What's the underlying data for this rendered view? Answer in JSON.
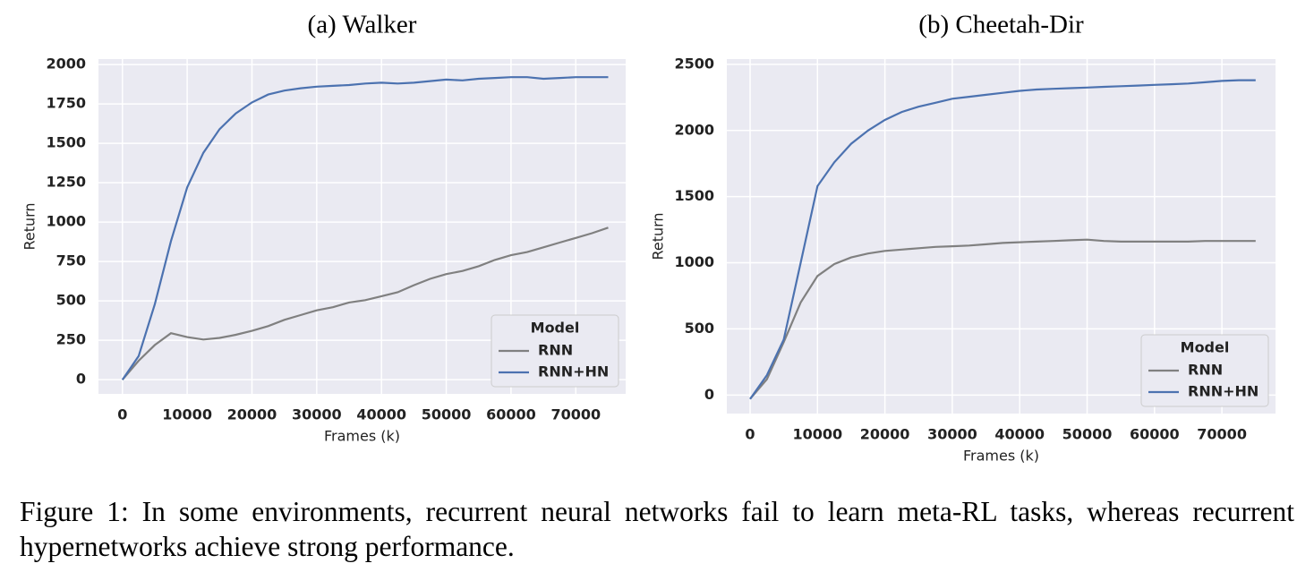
{
  "chart_data": [
    {
      "type": "line",
      "title": "(a) Walker",
      "xlabel": "Frames (k)",
      "ylabel": "Return",
      "x": [
        0,
        2500,
        5000,
        7500,
        10000,
        12500,
        15000,
        17500,
        20000,
        22500,
        25000,
        27500,
        30000,
        32500,
        35000,
        37500,
        40000,
        42500,
        45000,
        47500,
        50000,
        52500,
        55000,
        57500,
        60000,
        62500,
        65000,
        67500,
        70000,
        72500,
        75000
      ],
      "series": [
        {
          "name": "RNN",
          "color": "#808080",
          "values": [
            0,
            120,
            220,
            295,
            270,
            255,
            265,
            285,
            310,
            340,
            380,
            410,
            440,
            460,
            490,
            505,
            530,
            555,
            600,
            640,
            670,
            690,
            720,
            760,
            790,
            810,
            840,
            870,
            900,
            930,
            965
          ]
        },
        {
          "name": "RNN+HN",
          "color": "#4c72b0",
          "values": [
            0,
            150,
            480,
            880,
            1220,
            1440,
            1590,
            1690,
            1760,
            1810,
            1835,
            1850,
            1860,
            1865,
            1870,
            1880,
            1885,
            1880,
            1885,
            1895,
            1905,
            1900,
            1910,
            1915,
            1920,
            1920,
            1910,
            1915,
            1920,
            1920,
            1920
          ]
        }
      ],
      "xlim": [
        -3700,
        77700
      ],
      "xticks": [
        0,
        10000,
        20000,
        30000,
        40000,
        50000,
        60000,
        70000
      ],
      "ylim": [
        -90,
        2035
      ],
      "yticks": [
        0,
        250,
        500,
        750,
        1000,
        1250,
        1500,
        1750,
        2000
      ],
      "grid": true,
      "legend_title": "Model",
      "legend": "lower right"
    },
    {
      "type": "line",
      "title": "(b) Cheetah-Dir",
      "xlabel": "Frames (k)",
      "ylabel": "Return",
      "x": [
        0,
        2500,
        5000,
        7500,
        10000,
        12500,
        15000,
        17500,
        20000,
        22500,
        25000,
        27500,
        30000,
        32500,
        35000,
        37500,
        40000,
        42500,
        45000,
        47500,
        50000,
        52500,
        55000,
        57500,
        60000,
        62500,
        65000,
        67500,
        70000,
        72500,
        75000
      ],
      "series": [
        {
          "name": "RNN",
          "color": "#808080",
          "values": [
            -30,
            120,
            400,
            700,
            900,
            990,
            1040,
            1070,
            1090,
            1100,
            1110,
            1120,
            1125,
            1130,
            1140,
            1150,
            1155,
            1160,
            1165,
            1170,
            1175,
            1165,
            1160,
            1160,
            1160,
            1160,
            1160,
            1165,
            1165,
            1165,
            1165
          ]
        },
        {
          "name": "RNN+HN",
          "color": "#4c72b0",
          "values": [
            -30,
            150,
            420,
            1000,
            1580,
            1760,
            1900,
            2000,
            2080,
            2140,
            2180,
            2210,
            2240,
            2255,
            2270,
            2285,
            2300,
            2310,
            2315,
            2320,
            2325,
            2330,
            2335,
            2340,
            2345,
            2350,
            2355,
            2365,
            2375,
            2380,
            2380
          ]
        }
      ],
      "xlim": [
        -3450,
        77950
      ],
      "xticks": [
        0,
        10000,
        20000,
        30000,
        40000,
        50000,
        60000,
        70000
      ],
      "ylim": [
        -140,
        2540
      ],
      "yticks": [
        0,
        500,
        1000,
        1500,
        2000,
        2500
      ],
      "grid": true,
      "legend_title": "Model",
      "legend": "lower right"
    }
  ],
  "caption": "Figure 1: In some environments, recurrent neural networks fail to learn meta-RL tasks, whereas recurrent hypernetworks achieve strong performance."
}
